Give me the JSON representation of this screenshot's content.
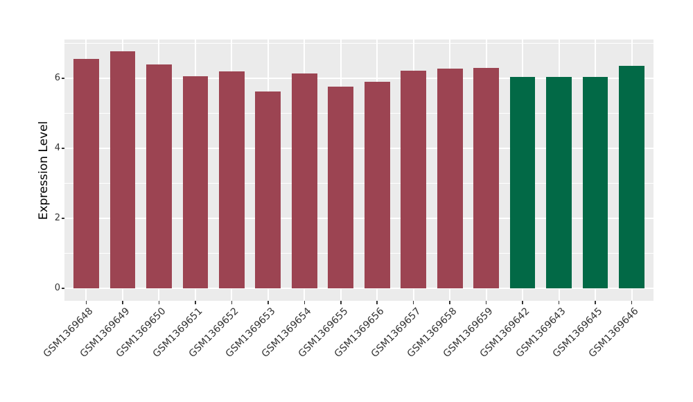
{
  "chart_data": {
    "type": "bar",
    "title": "",
    "xlabel": "",
    "ylabel": "Expression Level",
    "categories": [
      "GSM1369648",
      "GSM1369649",
      "GSM1369650",
      "GSM1369651",
      "GSM1369652",
      "GSM1369653",
      "GSM1369654",
      "GSM1369655",
      "GSM1369656",
      "GSM1369657",
      "GSM1369658",
      "GSM1369659",
      "GSM1369642",
      "GSM1369643",
      "GSM1369645",
      "GSM1369646"
    ],
    "values": [
      6.55,
      6.78,
      6.4,
      6.06,
      6.2,
      5.63,
      6.14,
      5.76,
      5.91,
      6.22,
      6.28,
      6.3,
      6.04,
      6.04,
      6.04,
      6.36
    ],
    "bar_colors": [
      "#9C4452",
      "#9C4452",
      "#9C4452",
      "#9C4452",
      "#9C4452",
      "#9C4452",
      "#9C4452",
      "#9C4452",
      "#9C4452",
      "#9C4452",
      "#9C4452",
      "#9C4452",
      "#026946",
      "#026946",
      "#026946",
      "#026946"
    ],
    "ylim": [
      -0.36,
      7.11
    ],
    "yticks": [
      0,
      2,
      4,
      6
    ],
    "yticks_minor": [
      1,
      3,
      5,
      7
    ],
    "grid": true,
    "legend": false,
    "colors": {
      "bar_red": "#9C4452",
      "bar_green": "#026946",
      "panel_background": "#EBEBEB",
      "gridline": "#FFFFFF",
      "axis_text": "#333333",
      "axis_title": "#000000",
      "figure_background": "#FFFFFF"
    }
  }
}
